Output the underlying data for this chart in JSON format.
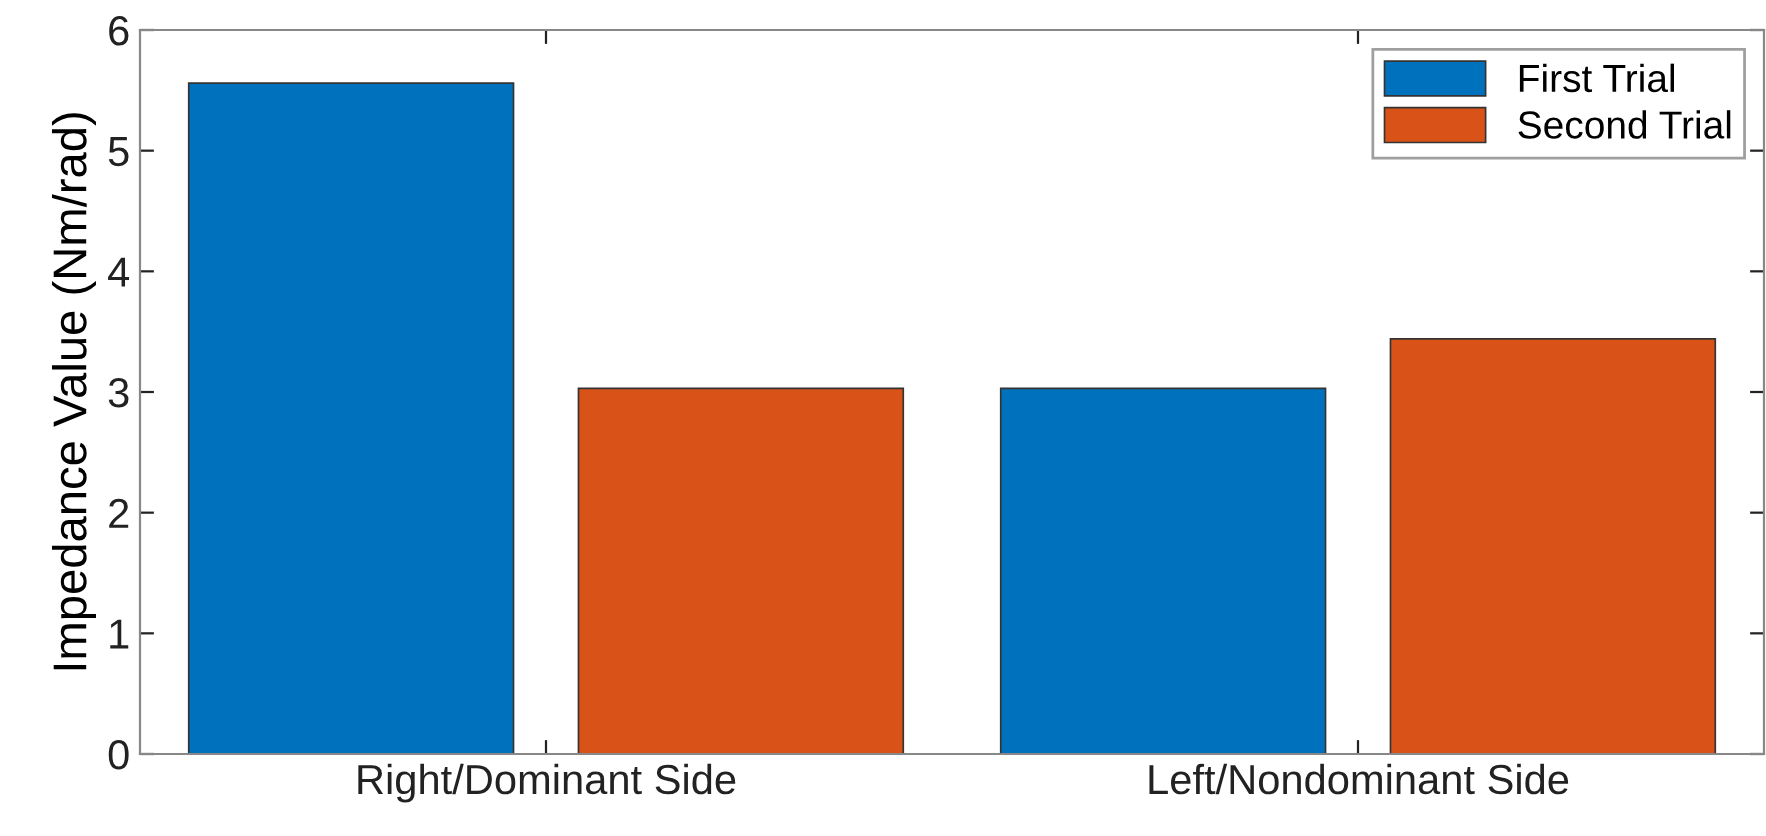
{
  "chart_data": {
    "type": "bar",
    "ylabel": "Impedance Value (Nm/rad)",
    "categories": [
      "Right/Dominant Side",
      "Left/Nondominant Side"
    ],
    "series": [
      {
        "name": "First Trial",
        "color": "#0072bd",
        "values": [
          5.56,
          3.03
        ]
      },
      {
        "name": "Second Trial",
        "color": "#d95319",
        "values": [
          3.03,
          3.44
        ]
      }
    ],
    "ylim": [
      0,
      6
    ],
    "yticks": [
      0,
      1,
      2,
      3,
      4,
      5,
      6
    ],
    "grid": false,
    "legend": "top right"
  }
}
